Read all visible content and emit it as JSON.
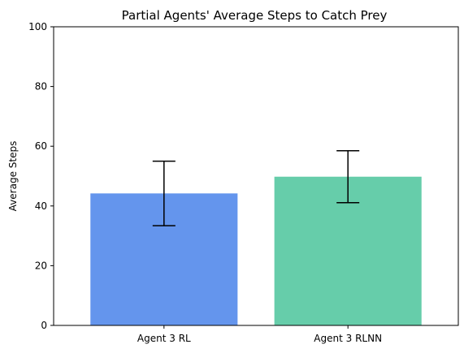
{
  "chart_data": {
    "type": "bar",
    "title": "Partial Agents' Average Steps to Catch Prey",
    "xlabel": "",
    "ylabel": "Average Steps",
    "categories": [
      "Agent 3 RL",
      "Agent 3 RLNN"
    ],
    "values": [
      44.2,
      49.8
    ],
    "errors": [
      10.8,
      8.7
    ],
    "colors": [
      "#6495ed",
      "#66cdaa"
    ],
    "ylim": [
      0,
      100
    ],
    "yticks": [
      0,
      20,
      40,
      60,
      80,
      100
    ],
    "grid": false,
    "legend": "none"
  }
}
